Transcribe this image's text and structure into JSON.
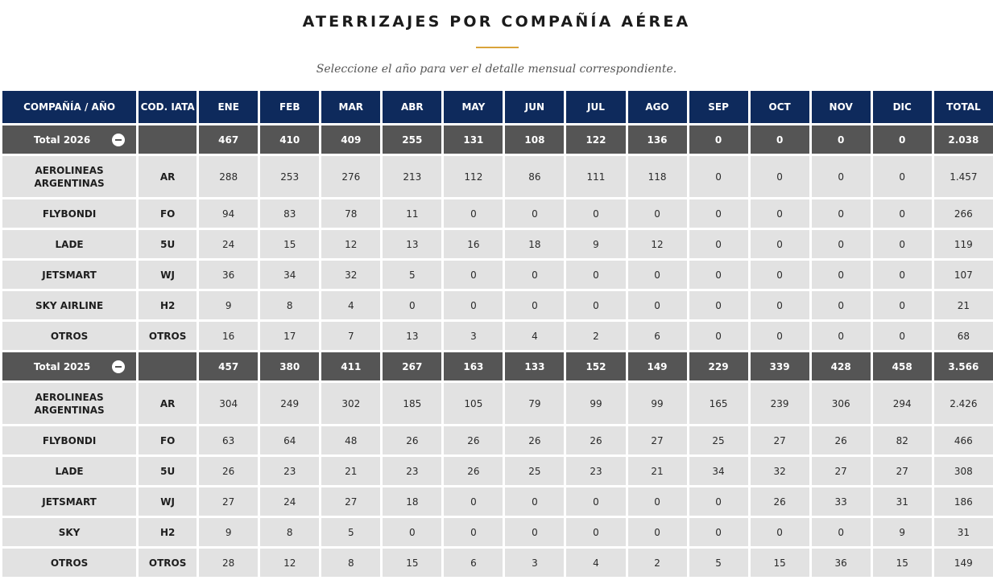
{
  "page": {
    "title": "ATERRIZAJES POR COMPAÑÍA AÉREA",
    "subtitle": "Seleccione el año para ver el detalle mensual correspondiente."
  },
  "colors": {
    "header_bg": "#0e2a5c",
    "total_bg": "#555555",
    "row_bg": "#e2e2e2",
    "accent": "#d9a33a"
  },
  "table": {
    "headers": [
      "COMPAÑÍA / AÑO",
      "COD. IATA",
      "ENE",
      "FEB",
      "MAR",
      "ABR",
      "MAY",
      "JUN",
      "JUL",
      "AGO",
      "SEP",
      "OCT",
      "NOV",
      "DIC",
      "TOTAL"
    ],
    "groups": [
      {
        "label": "Total 2026",
        "icon": "collapse-minus-icon",
        "values": [
          "467",
          "410",
          "409",
          "255",
          "131",
          "108",
          "122",
          "136",
          "0",
          "0",
          "0",
          "0",
          "2.038"
        ],
        "rows": [
          {
            "name": "AEROLINEAS ARGENTINAS",
            "code": "AR",
            "values": [
              "288",
              "253",
              "276",
              "213",
              "112",
              "86",
              "111",
              "118",
              "0",
              "0",
              "0",
              "0",
              "1.457"
            ]
          },
          {
            "name": "FLYBONDI",
            "code": "FO",
            "values": [
              "94",
              "83",
              "78",
              "11",
              "0",
              "0",
              "0",
              "0",
              "0",
              "0",
              "0",
              "0",
              "266"
            ]
          },
          {
            "name": "LADE",
            "code": "5U",
            "values": [
              "24",
              "15",
              "12",
              "13",
              "16",
              "18",
              "9",
              "12",
              "0",
              "0",
              "0",
              "0",
              "119"
            ]
          },
          {
            "name": "JETSMART",
            "code": "WJ",
            "values": [
              "36",
              "34",
              "32",
              "5",
              "0",
              "0",
              "0",
              "0",
              "0",
              "0",
              "0",
              "0",
              "107"
            ]
          },
          {
            "name": "SKY AIRLINE",
            "code": "H2",
            "values": [
              "9",
              "8",
              "4",
              "0",
              "0",
              "0",
              "0",
              "0",
              "0",
              "0",
              "0",
              "0",
              "21"
            ]
          },
          {
            "name": "OTROS",
            "code": "OTROS",
            "values": [
              "16",
              "17",
              "7",
              "13",
              "3",
              "4",
              "2",
              "6",
              "0",
              "0",
              "0",
              "0",
              "68"
            ]
          }
        ]
      },
      {
        "label": "Total 2025",
        "icon": "collapse-minus-icon",
        "values": [
          "457",
          "380",
          "411",
          "267",
          "163",
          "133",
          "152",
          "149",
          "229",
          "339",
          "428",
          "458",
          "3.566"
        ],
        "rows": [
          {
            "name": "AEROLINEAS ARGENTINAS",
            "code": "AR",
            "values": [
              "304",
              "249",
              "302",
              "185",
              "105",
              "79",
              "99",
              "99",
              "165",
              "239",
              "306",
              "294",
              "2.426"
            ]
          },
          {
            "name": "FLYBONDI",
            "code": "FO",
            "values": [
              "63",
              "64",
              "48",
              "26",
              "26",
              "26",
              "26",
              "27",
              "25",
              "27",
              "26",
              "82",
              "466"
            ]
          },
          {
            "name": "LADE",
            "code": "5U",
            "values": [
              "26",
              "23",
              "21",
              "23",
              "26",
              "25",
              "23",
              "21",
              "34",
              "32",
              "27",
              "27",
              "308"
            ]
          },
          {
            "name": "JETSMART",
            "code": "WJ",
            "values": [
              "27",
              "24",
              "27",
              "18",
              "0",
              "0",
              "0",
              "0",
              "0",
              "26",
              "33",
              "31",
              "186"
            ]
          },
          {
            "name": "SKY",
            "code": "H2",
            "values": [
              "9",
              "8",
              "5",
              "0",
              "0",
              "0",
              "0",
              "0",
              "0",
              "0",
              "0",
              "9",
              "31"
            ]
          },
          {
            "name": "OTROS",
            "code": "OTROS",
            "values": [
              "28",
              "12",
              "8",
              "15",
              "6",
              "3",
              "4",
              "2",
              "5",
              "15",
              "36",
              "15",
              "149"
            ]
          }
        ]
      }
    ]
  }
}
